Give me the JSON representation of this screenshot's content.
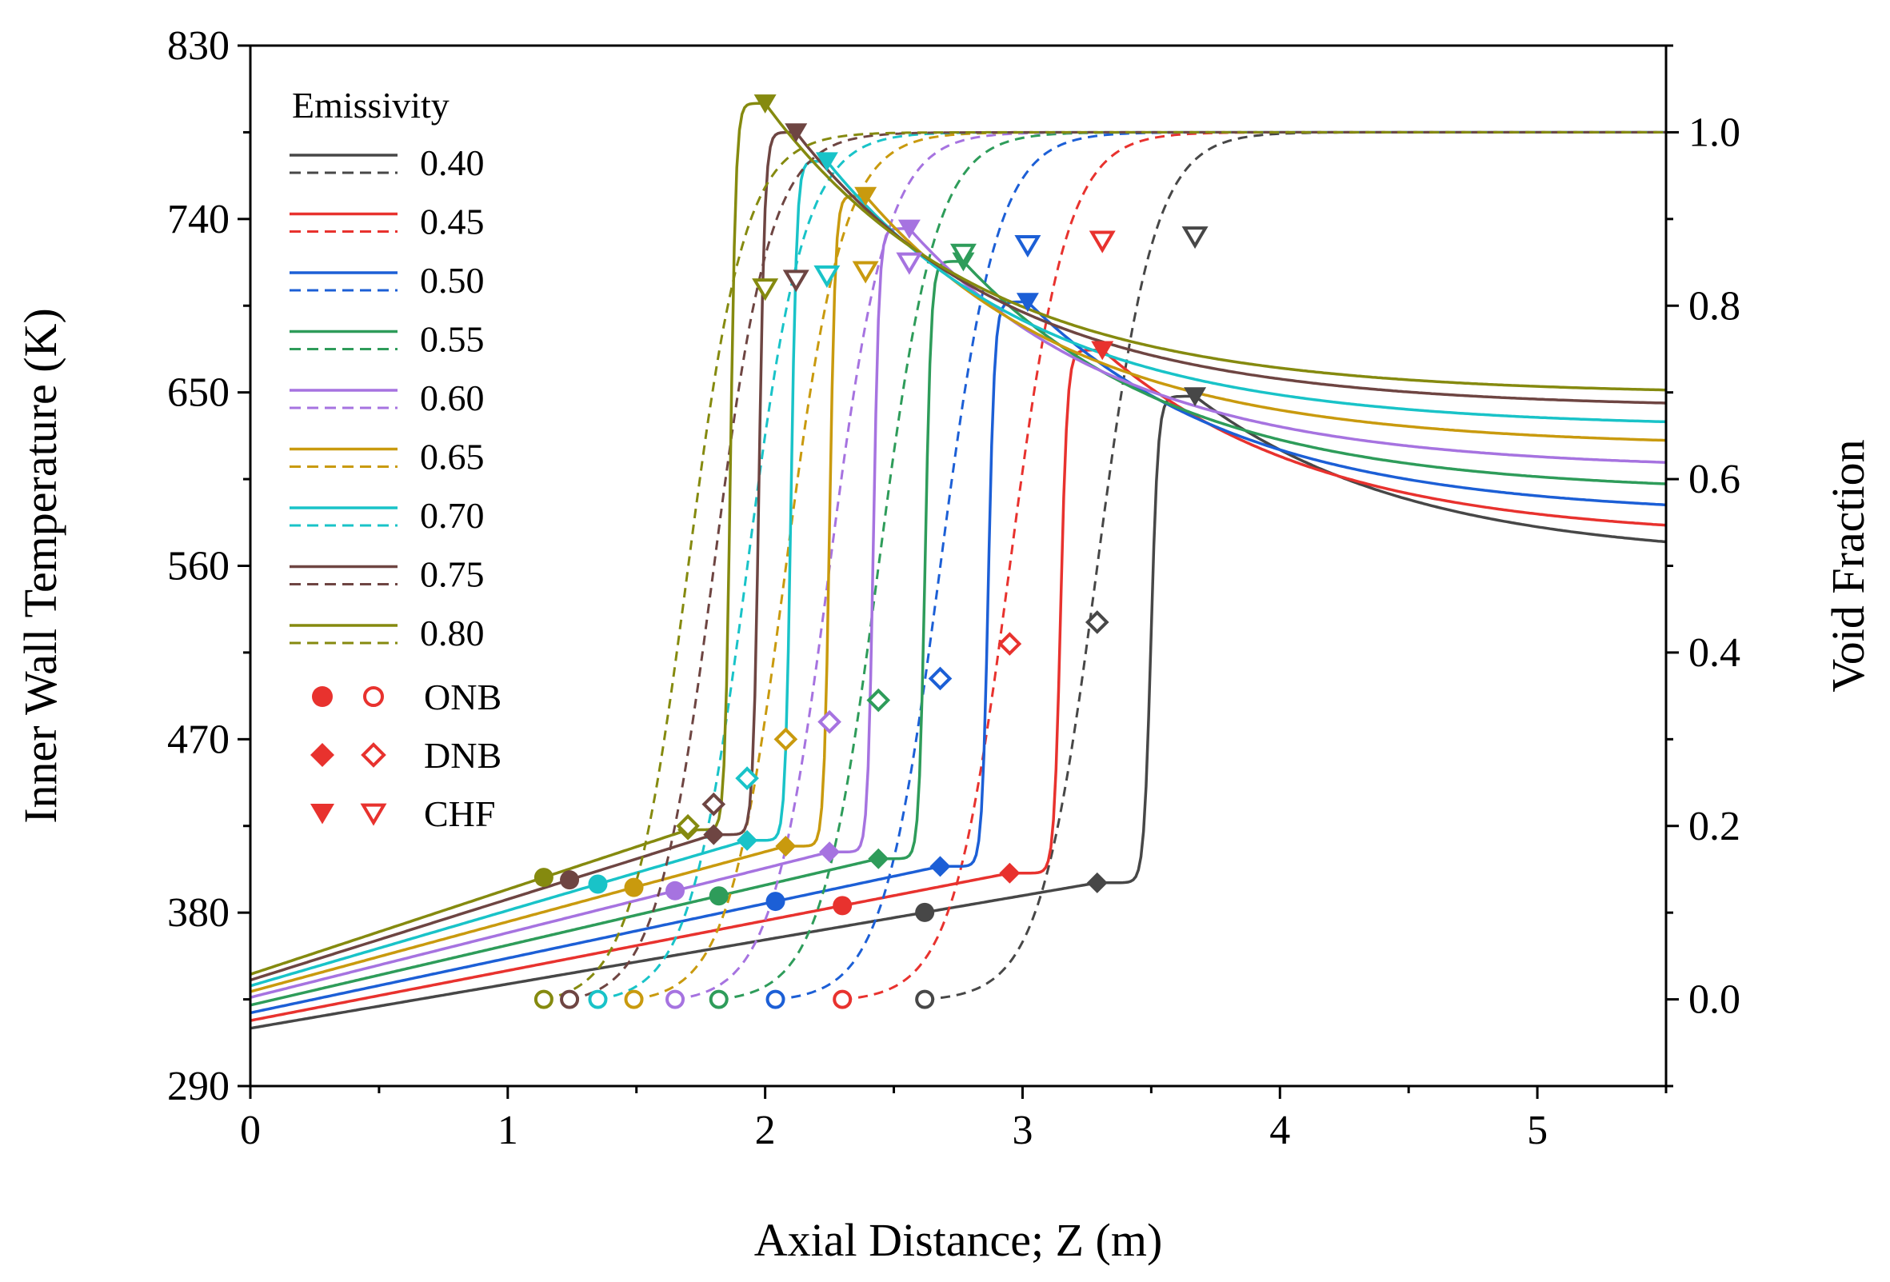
{
  "chart_data": {
    "type": "line",
    "xlabel": "Axial Distance; Z (m)",
    "ylabel": "Inner Wall Temperature (K)",
    "y2label": "Void Fraction",
    "xlim": [
      0,
      5.5
    ],
    "ylim": [
      290,
      830
    ],
    "y2lim": [
      -0.1,
      1.1
    ],
    "xticks": [
      "0",
      "1",
      "2",
      "3",
      "4",
      "5"
    ],
    "yticks": [
      "290",
      "380",
      "470",
      "560",
      "650",
      "740",
      "830"
    ],
    "y2ticks": [
      "0.0",
      "0.2",
      "0.4",
      "0.6",
      "0.8",
      "1.0"
    ],
    "legend": {
      "title": "Emissivity",
      "position": "top-left",
      "markers": [
        {
          "label": "ONB",
          "shape": "circle"
        },
        {
          "label": "DNB",
          "shape": "diamond"
        },
        {
          "label": "CHF",
          "shape": "triangle-down"
        }
      ]
    },
    "series": [
      {
        "name": "0.40",
        "color": "#474747",
        "t0": 320,
        "tw_end": 395.5,
        "onb": 2.62,
        "dnb": 3.29,
        "chf": 3.67,
        "t_chf": 648,
        "t_end": 563,
        "vf_onb": 2.62,
        "vf_dnb": 3.29,
        "vf_chf": 3.67,
        "vf_dnb_val": 0.435,
        "vf_chf_val": 0.88
      },
      {
        "name": "0.45",
        "color": "#e8322e",
        "t0": 324,
        "tw_end": 400.5,
        "onb": 2.3,
        "dnb": 2.95,
        "chf": 3.31,
        "t_chf": 672,
        "t_end": 574,
        "vf_onb": 2.3,
        "vf_dnb": 2.95,
        "vf_chf": 3.31,
        "vf_dnb_val": 0.41,
        "vf_chf_val": 0.875
      },
      {
        "name": "0.50",
        "color": "#1c5fd6",
        "t0": 328,
        "tw_end": 404,
        "onb": 2.04,
        "dnb": 2.68,
        "chf": 3.02,
        "t_chf": 697,
        "t_end": 586,
        "vf_onb": 2.04,
        "vf_dnb": 2.68,
        "vf_chf": 3.02,
        "vf_dnb_val": 0.37,
        "vf_chf_val": 0.87
      },
      {
        "name": "0.55",
        "color": "#2e9c5a",
        "t0": 332,
        "tw_end": 408,
        "onb": 1.82,
        "dnb": 2.44,
        "chf": 2.77,
        "t_chf": 718,
        "t_end": 598,
        "vf_onb": 1.82,
        "vf_dnb": 2.44,
        "vf_chf": 2.77,
        "vf_dnb_val": 0.345,
        "vf_chf_val": 0.86
      },
      {
        "name": "0.60",
        "color": "#a673e0",
        "t0": 336,
        "tw_end": 411.5,
        "onb": 1.65,
        "dnb": 2.25,
        "chf": 2.56,
        "t_chf": 735,
        "t_end": 610,
        "vf_onb": 1.65,
        "vf_dnb": 2.25,
        "vf_chf": 2.56,
        "vf_dnb_val": 0.32,
        "vf_chf_val": 0.85
      },
      {
        "name": "0.65",
        "color": "#c99a0e",
        "t0": 339,
        "tw_end": 414.5,
        "onb": 1.49,
        "dnb": 2.08,
        "chf": 2.39,
        "t_chf": 752,
        "t_end": 622,
        "vf_onb": 1.49,
        "vf_dnb": 2.08,
        "vf_chf": 2.39,
        "vf_dnb_val": 0.3,
        "vf_chf_val": 0.84
      },
      {
        "name": "0.70",
        "color": "#19c3c8",
        "t0": 342,
        "tw_end": 417.5,
        "onb": 1.35,
        "dnb": 1.93,
        "chf": 2.24,
        "t_chf": 770,
        "t_end": 632,
        "vf_onb": 1.35,
        "vf_dnb": 1.93,
        "vf_chf": 2.24,
        "vf_dnb_val": 0.255,
        "vf_chf_val": 0.835
      },
      {
        "name": "0.75",
        "color": "#6e4542",
        "t0": 345,
        "tw_end": 420.5,
        "onb": 1.24,
        "dnb": 1.8,
        "chf": 2.12,
        "t_chf": 785,
        "t_end": 642,
        "vf_onb": 1.24,
        "vf_dnb": 1.8,
        "vf_chf": 2.12,
        "vf_dnb_val": 0.225,
        "vf_chf_val": 0.83
      },
      {
        "name": "0.80",
        "color": "#858a0f",
        "t0": 348,
        "tw_end": 423,
        "onb": 1.14,
        "dnb": 1.7,
        "chf": 2.0,
        "t_chf": 800,
        "t_end": 649,
        "vf_onb": 1.14,
        "vf_dnb": 1.7,
        "vf_chf": 2.0,
        "vf_dnb_val": 0.2,
        "vf_chf_val": 0.82
      }
    ]
  }
}
